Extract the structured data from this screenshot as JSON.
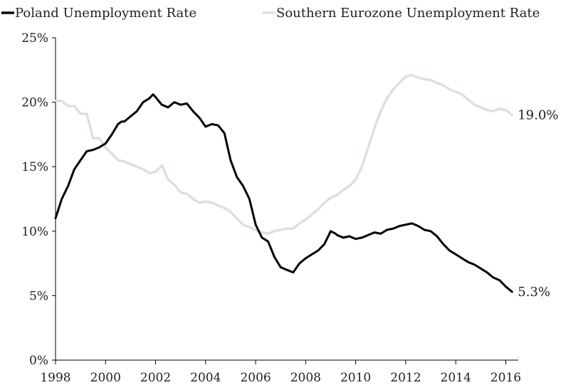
{
  "chart_data": {
    "type": "line",
    "title": "",
    "xlabel": "",
    "ylabel": "",
    "xlim": [
      1998,
      2016.5
    ],
    "ylim": [
      0,
      25
    ],
    "x_ticks": [
      1998,
      2000,
      2002,
      2004,
      2006,
      2008,
      2010,
      2012,
      2014,
      2016
    ],
    "x_tick_labels": [
      "1998",
      "2000",
      "2002",
      "2004",
      "2006",
      "2008",
      "2010",
      "2012",
      "2014",
      "2016"
    ],
    "y_ticks": [
      0,
      5,
      10,
      15,
      20,
      25
    ],
    "y_tick_labels": [
      "0%",
      "5%",
      "10%",
      "15%",
      "20%",
      "25%"
    ],
    "grid": false,
    "legend_position": "top",
    "series": [
      {
        "name": "Poland Unemployment Rate",
        "color": "#000000",
        "end_label": "5.3%",
        "x": [
          1998.0,
          1998.25,
          1998.5,
          1998.75,
          1999.0,
          1999.25,
          1999.5,
          1999.75,
          2000.0,
          2000.25,
          2000.5,
          2000.65,
          2000.75,
          2001.0,
          2001.25,
          2001.5,
          2001.75,
          2001.9,
          2002.0,
          2002.25,
          2002.5,
          2002.75,
          2003.0,
          2003.25,
          2003.5,
          2003.75,
          2004.0,
          2004.25,
          2004.5,
          2004.75,
          2005.0,
          2005.25,
          2005.5,
          2005.75,
          2006.0,
          2006.25,
          2006.5,
          2006.75,
          2007.0,
          2007.25,
          2007.5,
          2007.75,
          2008.0,
          2008.25,
          2008.5,
          2008.75,
          2009.0,
          2009.2,
          2009.25,
          2009.5,
          2009.75,
          2010.0,
          2010.25,
          2010.5,
          2010.75,
          2011.0,
          2011.25,
          2011.5,
          2011.75,
          2012.0,
          2012.25,
          2012.5,
          2012.75,
          2013.0,
          2013.25,
          2013.5,
          2013.75,
          2014.0,
          2014.25,
          2014.5,
          2014.75,
          2015.0,
          2015.25,
          2015.5,
          2015.75,
          2016.0,
          2016.25
        ],
        "y": [
          11.0,
          12.5,
          13.5,
          14.8,
          15.5,
          16.2,
          16.3,
          16.5,
          16.8,
          17.5,
          18.3,
          18.5,
          18.5,
          18.9,
          19.3,
          20.0,
          20.3,
          20.6,
          20.4,
          19.8,
          19.6,
          20.0,
          19.8,
          19.9,
          19.3,
          18.8,
          18.1,
          18.3,
          18.2,
          17.6,
          15.5,
          14.2,
          13.5,
          12.5,
          10.5,
          9.5,
          9.2,
          8.0,
          7.2,
          7.0,
          6.8,
          7.5,
          7.9,
          8.2,
          8.5,
          9.0,
          10.0,
          9.8,
          9.7,
          9.5,
          9.6,
          9.4,
          9.5,
          9.7,
          9.9,
          9.8,
          10.1,
          10.2,
          10.4,
          10.5,
          10.6,
          10.4,
          10.1,
          10.0,
          9.6,
          9.0,
          8.5,
          8.2,
          7.9,
          7.6,
          7.4,
          7.1,
          6.8,
          6.4,
          6.2,
          5.7,
          5.3
        ]
      },
      {
        "name": "Southern Eurozone Unemployment Rate",
        "color": "#d9e2dd",
        "end_label": "19.0%",
        "x": [
          1998.0,
          1998.25,
          1998.5,
          1998.75,
          1999.0,
          1999.25,
          1999.5,
          1999.75,
          2000.0,
          2000.25,
          2000.5,
          2000.75,
          2001.0,
          2001.25,
          2001.5,
          2001.75,
          2002.0,
          2002.25,
          2002.5,
          2002.75,
          2003.0,
          2003.25,
          2003.5,
          2003.75,
          2004.0,
          2004.25,
          2004.5,
          2004.75,
          2005.0,
          2005.25,
          2005.5,
          2005.75,
          2006.0,
          2006.25,
          2006.5,
          2006.75,
          2007.0,
          2007.25,
          2007.5,
          2007.75,
          2008.0,
          2008.25,
          2008.5,
          2008.75,
          2009.0,
          2009.25,
          2009.5,
          2009.75,
          2010.0,
          2010.25,
          2010.5,
          2010.75,
          2011.0,
          2011.25,
          2011.5,
          2011.75,
          2012.0,
          2012.25,
          2012.5,
          2012.75,
          2013.0,
          2013.25,
          2013.5,
          2013.75,
          2014.0,
          2014.25,
          2014.5,
          2014.75,
          2015.0,
          2015.25,
          2015.5,
          2015.75,
          2016.0,
          2016.25
        ],
        "y": [
          20.1,
          20.1,
          19.7,
          19.7,
          19.1,
          19.1,
          17.2,
          17.2,
          16.5,
          16.0,
          15.5,
          15.4,
          15.2,
          15.0,
          14.8,
          14.5,
          14.6,
          15.1,
          14.0,
          13.6,
          13.0,
          12.9,
          12.5,
          12.2,
          12.3,
          12.2,
          12.0,
          11.8,
          11.5,
          11.0,
          10.5,
          10.3,
          10.1,
          9.9,
          9.8,
          10.0,
          10.1,
          10.2,
          10.2,
          10.6,
          10.9,
          11.3,
          11.7,
          12.2,
          12.6,
          12.8,
          13.2,
          13.5,
          14.0,
          15.0,
          16.5,
          18.0,
          19.3,
          20.3,
          21.0,
          21.5,
          22.0,
          22.1,
          21.9,
          21.8,
          21.7,
          21.5,
          21.3,
          21.0,
          20.8,
          20.6,
          20.2,
          19.8,
          19.6,
          19.4,
          19.3,
          19.5,
          19.4,
          19.0
        ]
      }
    ]
  }
}
